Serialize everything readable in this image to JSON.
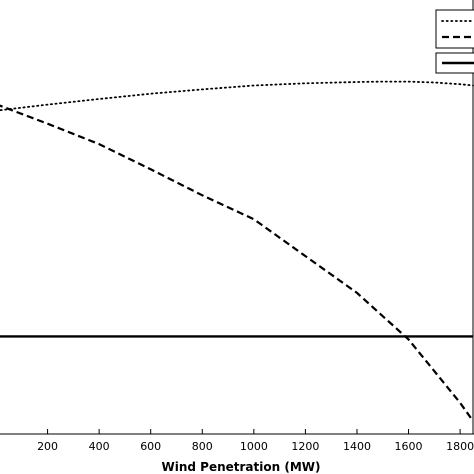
{
  "chart_data": {
    "type": "line",
    "title": "",
    "xlabel": "Wind Penetration (MW)",
    "ylabel": "",
    "x_ticks": [
      200,
      400,
      600,
      800,
      1000,
      1200,
      1400,
      1600,
      1800
    ],
    "grid": false,
    "legend_position": "top-right",
    "series": [
      {
        "style": "dotted",
        "x": [
          0,
          200,
          400,
          600,
          800,
          1000,
          1200,
          1400,
          1500,
          1600,
          1700,
          1800,
          1850
        ],
        "y": [
          0.745,
          0.759,
          0.772,
          0.784,
          0.794,
          0.803,
          0.808,
          0.811,
          0.812,
          0.812,
          0.81,
          0.806,
          0.803
        ]
      },
      {
        "style": "dashed",
        "x": [
          0,
          200,
          400,
          600,
          800,
          1000,
          1200,
          1400,
          1600,
          1800,
          1850
        ],
        "y": [
          0.76,
          0.715,
          0.668,
          0.61,
          0.55,
          0.495,
          0.41,
          0.325,
          0.218,
          0.072,
          0.03
        ]
      },
      {
        "style": "solid",
        "x": [
          0,
          1850
        ],
        "y": [
          0.225,
          0.225
        ]
      }
    ]
  }
}
